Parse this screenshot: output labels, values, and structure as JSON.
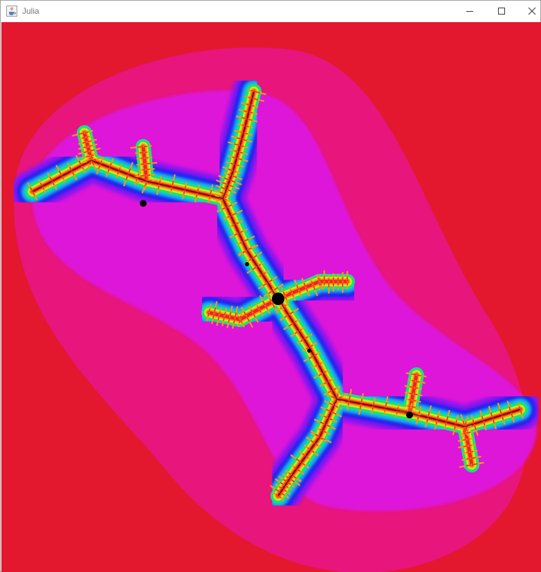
{
  "window": {
    "title": "Julia",
    "icon": "java-cup-icon",
    "controls": [
      "minimize-icon",
      "maximize-icon",
      "close-icon"
    ]
  },
  "fractal": {
    "colors": {
      "background": "#e3182f",
      "outer_halo": "#e7157c",
      "halo_magenta": "#dd18d9",
      "violet": "#8f18ee",
      "blue": "#2222ee",
      "cyan": "#12b8ec",
      "green": "#17e27a",
      "yellow_green": "#c9ee12",
      "orange": "#f39b12",
      "red_core": "#ee2424",
      "set_interior": "#000000"
    }
  }
}
